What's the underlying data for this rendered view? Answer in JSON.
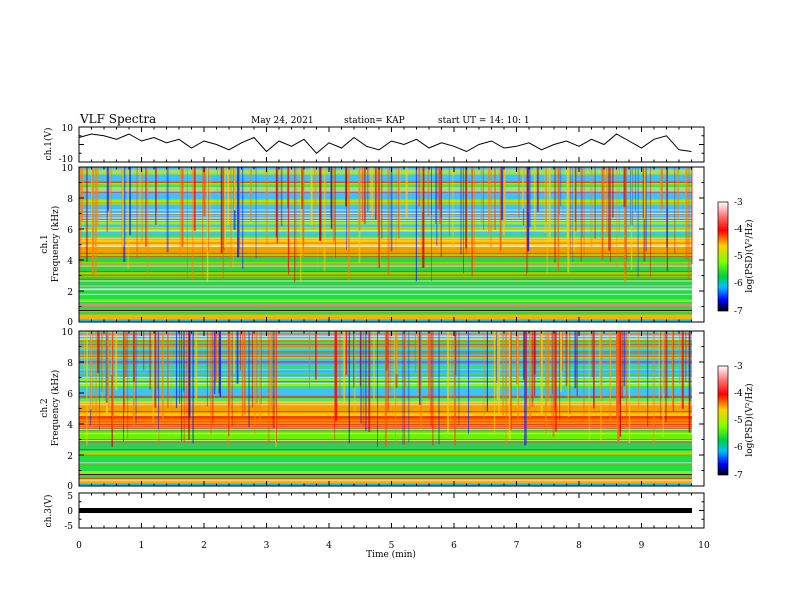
{
  "header": {
    "title": "VLF Spectra",
    "date": "May 24, 2021",
    "station": "station= KAP",
    "start": "start  UT =   14: 10: 1"
  },
  "chart_data": [
    {
      "type": "line",
      "panel": "waveform-ch1",
      "ylabel": "ch.1(V)",
      "ylim": [
        -10,
        10
      ],
      "y_ticklabels": [
        "10",
        "-10"
      ],
      "x": [
        0.0,
        0.2,
        0.4,
        0.6,
        0.8,
        1.0,
        1.2,
        1.4,
        1.6,
        1.8,
        2.0,
        2.2,
        2.4,
        2.6,
        2.8,
        3.0,
        3.2,
        3.4,
        3.6,
        3.8,
        4.0,
        4.2,
        4.4,
        4.6,
        4.8,
        5.0,
        5.2,
        5.4,
        5.6,
        5.8,
        6.0,
        6.2,
        6.4,
        6.6,
        6.8,
        7.0,
        7.2,
        7.4,
        7.6,
        7.8,
        8.0,
        8.2,
        8.4,
        8.6,
        8.8,
        9.0,
        9.2,
        9.4,
        9.6,
        9.8
      ],
      "values": [
        4,
        6,
        5,
        3,
        6,
        2,
        4,
        1,
        3,
        -2,
        2,
        0,
        -3,
        1,
        4,
        -4,
        2,
        -1,
        3,
        -5,
        1,
        -2,
        4,
        -1,
        -3,
        2,
        0,
        3,
        -2,
        1,
        -1,
        -4,
        0,
        2,
        -2,
        -1,
        1,
        -3,
        0,
        2,
        -1,
        3,
        0,
        6,
        2,
        -2,
        3,
        5,
        -3,
        -4
      ]
    },
    {
      "type": "heatmap",
      "panel": "spectrogram-ch1",
      "ylabel_line1": "ch.1",
      "ylabel_line2": "Frequency  (kHz)",
      "ylim": [
        0,
        10
      ],
      "y_ticklabels": [
        "0",
        "2",
        "4",
        "6",
        "8",
        "10"
      ],
      "colorbar": {
        "label": "log(PSD)(V²/Hz)",
        "range": [
          -7,
          -3
        ],
        "ticklabels": [
          "-3",
          "-4",
          "-5",
          "-6",
          "-7"
        ]
      }
    },
    {
      "type": "heatmap",
      "panel": "spectrogram-ch2",
      "ylabel_line1": "ch.2",
      "ylabel_line2": "Frequency  (kHz)",
      "ylim": [
        0,
        10
      ],
      "y_ticklabels": [
        "0",
        "2",
        "4",
        "6",
        "8",
        "10"
      ],
      "colorbar": {
        "label": "log(PSD)(V²/Hz)",
        "range": [
          -7,
          -3
        ],
        "ticklabels": [
          "-3",
          "-4",
          "-5",
          "-6",
          "-7"
        ]
      }
    },
    {
      "type": "line",
      "panel": "waveform-ch3",
      "ylabel": "ch.3(V)",
      "ylim": [
        -5,
        5
      ],
      "y_ticklabels": [
        "5",
        "0",
        "-5"
      ],
      "x": [
        0,
        9.8
      ],
      "values": [
        0,
        0
      ]
    }
  ],
  "xaxis": {
    "label": "Time  (min)",
    "range": [
      0,
      10
    ],
    "ticklabels": [
      "0",
      "1",
      "2",
      "3",
      "4",
      "5",
      "6",
      "7",
      "8",
      "9",
      "10"
    ]
  }
}
